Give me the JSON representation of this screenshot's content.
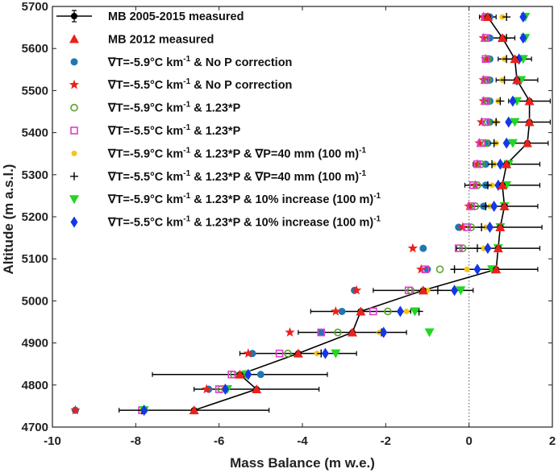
{
  "chart_data": {
    "type": "scatter",
    "title": "",
    "xlabel": "Mass Balance (m w.e.)",
    "ylabel": "Altitude (m a.s.l.)",
    "xlim": [
      -10,
      2
    ],
    "ylim": [
      4700,
      5700
    ],
    "xticks": [
      "-10",
      "-8",
      "-6",
      "-4",
      "-2",
      "0",
      "2"
    ],
    "yticks": [
      "4700",
      "4800",
      "4900",
      "5000",
      "5100",
      "5200",
      "5300",
      "5400",
      "5500",
      "5600",
      "5700"
    ],
    "zero_line_x": 0,
    "legend_position": "top-left",
    "altitudes": [
      4740,
      4790,
      4825,
      4875,
      4925,
      4975,
      5025,
      5075,
      5125,
      5175,
      5225,
      5275,
      5325,
      5375,
      5425,
      5475,
      5525,
      5575,
      5625,
      5675
    ],
    "series": [
      {
        "name": "MB 2005-2015 measured",
        "legend_label": {
          "pre": "MB 2005-2015 measured",
          "sup": "",
          "post": ""
        },
        "marker": "dot-errorbar",
        "color": "#000000",
        "values": [
          -6.6,
          -5.1,
          -5.5,
          -4.1,
          -2.8,
          -2.6,
          -1.1,
          0.65,
          0.7,
          0.75,
          0.85,
          0.8,
          0.9,
          1.4,
          1.45,
          1.45,
          1.15,
          1.1,
          0.8,
          0.45
        ],
        "error": [
          1.8,
          1.5,
          2.1,
          1.4,
          1.3,
          1.2,
          1.2,
          1.0,
          1.0,
          1.0,
          0.8,
          0.9,
          0.8,
          0.5,
          0.5,
          0.5,
          0.5,
          0.4,
          0.3,
          0.2
        ]
      },
      {
        "name": "MB 2012 measured",
        "legend_label": {
          "pre": "MB 2012 measured",
          "sup": "",
          "post": ""
        },
        "marker": "triangle-up",
        "color": "#e8221b",
        "values": [
          -6.6,
          -5.1,
          -5.5,
          -4.1,
          -2.8,
          -2.6,
          -1.1,
          0.65,
          0.7,
          0.75,
          0.85,
          0.8,
          0.9,
          1.4,
          1.45,
          1.45,
          1.15,
          1.1,
          0.8,
          0.45
        ]
      },
      {
        "name": "∇T=-5.9°C km-1 & No P correction",
        "legend_label": {
          "pre": "∇T=-5.9°C km",
          "sup": "-1",
          "post": " & No P correction"
        },
        "marker": "circle-filled",
        "color": "#1f77b4",
        "values": [
          -9.45,
          -6.25,
          -5.0,
          -5.2,
          -3.55,
          -3.05,
          -2.75,
          -1.0,
          -1.1,
          -0.25,
          0.35,
          0.4,
          0.4,
          0.45,
          0.5,
          0.5,
          0.5,
          0.5,
          0.5,
          0.5
        ]
      },
      {
        "name": "∇T=-5.5°C km-1 & No P correction",
        "legend_label": {
          "pre": "∇T=-5.5°C km",
          "sup": "-1",
          "post": " & No P correction"
        },
        "marker": "star",
        "color": "#e8221b",
        "values": [
          -9.45,
          -6.3,
          -5.35,
          -5.3,
          -4.3,
          -3.2,
          -2.7,
          -1.15,
          -1.35,
          -0.15,
          0.0,
          0.15,
          0.2,
          0.25,
          0.3,
          0.35,
          0.35,
          0.4,
          0.35,
          0.35
        ]
      },
      {
        "name": "∇T=-5.9°C km-1 & 1.23*P",
        "legend_label": {
          "pre": "∇T=-5.9°C km",
          "sup": "-1",
          "post": " & 1.23*P"
        },
        "marker": "circle-open",
        "color": "#5aa02c",
        "values": [
          -7.8,
          -5.95,
          -5.65,
          -4.35,
          -3.15,
          -1.95,
          -1.4,
          -0.7,
          -0.15,
          0.05,
          0.15,
          0.2,
          0.3,
          0.4,
          0.45,
          0.45,
          0.45,
          0.45,
          0.4,
          0.4
        ]
      },
      {
        "name": "∇T=-5.5°C km-1 & 1.23*P",
        "legend_label": {
          "pre": "∇T=-5.5°C km",
          "sup": "-1",
          "post": " & 1.23*P"
        },
        "marker": "square-open",
        "color": "#e03cd0",
        "values": [
          -7.85,
          -6.0,
          -5.7,
          -4.55,
          -3.55,
          -2.3,
          -1.45,
          -1.05,
          -0.25,
          -0.05,
          0.05,
          0.1,
          0.2,
          0.3,
          0.4,
          0.4,
          0.4,
          0.4,
          0.4,
          0.4
        ]
      },
      {
        "name": "∇T=-5.9°C km-1 & 1.23*P & ∇P=40 mm (100 m)-1",
        "legend_label": {
          "pre": "∇T=-5.9°C km",
          "sup": "-1",
          "post": " & 1.23*P & ∇P=40 mm (100 m)",
          "sup2": "-1"
        },
        "marker": "dot-small",
        "color": "#f5c518",
        "values": [
          -7.85,
          -5.9,
          -5.5,
          -3.65,
          -2.15,
          -1.5,
          -1.0,
          -0.05,
          0.35,
          0.4,
          0.5,
          0.55,
          0.6,
          0.65,
          0.65,
          0.7,
          0.8,
          0.85,
          0.85,
          0.8
        ]
      },
      {
        "name": "∇T=-5.5°C km-1 & 1.23*P & ∇P=40 mm (100 m)-1",
        "legend_label": {
          "pre": "∇T=-5.5°C km",
          "sup": "-1",
          "post": " & 1.23*P & ∇P=40 mm (100 m)",
          "sup2": "-1"
        },
        "marker": "plus",
        "color": "#000000",
        "values": [
          -7.85,
          -5.85,
          -5.4,
          -3.55,
          -2.1,
          -1.2,
          -0.75,
          -0.35,
          0.2,
          0.3,
          0.4,
          0.45,
          0.55,
          0.6,
          0.65,
          0.75,
          0.85,
          0.9,
          0.9,
          0.9
        ]
      },
      {
        "name": "∇T=-5.9°C km-1 & 1.23*P & 10% increase (100 m)-1",
        "legend_label": {
          "pre": "∇T=-5.9°C km",
          "sup": "-1",
          "post": " & 1.23*P & 10% increase (100 m)",
          "sup2": "-1"
        },
        "marker": "triangle-down",
        "color": "#1fd81f",
        "values": [
          -7.8,
          -5.8,
          -5.35,
          -3.2,
          -0.95,
          -1.3,
          -0.2,
          0.55,
          0.7,
          0.75,
          0.85,
          0.9,
          0.95,
          1.05,
          1.1,
          1.15,
          1.25,
          1.3,
          1.35,
          1.35
        ]
      },
      {
        "name": "∇T=-5.5°C km-1 & 1.23*P & 10% increase (100 m)-1",
        "legend_label": {
          "pre": "∇T=-5.5°C km",
          "sup": "-1",
          "post": " & 1.23*P & 10% increase (100 m)",
          "sup2": "-1"
        },
        "marker": "diamond",
        "color": "#1537e8",
        "values": [
          -7.8,
          -5.85,
          -5.3,
          -3.45,
          -2.05,
          -1.65,
          -0.35,
          0.2,
          0.45,
          0.5,
          0.6,
          0.7,
          0.75,
          0.9,
          0.95,
          1.05,
          1.15,
          1.2,
          1.3,
          1.3
        ]
      }
    ]
  }
}
